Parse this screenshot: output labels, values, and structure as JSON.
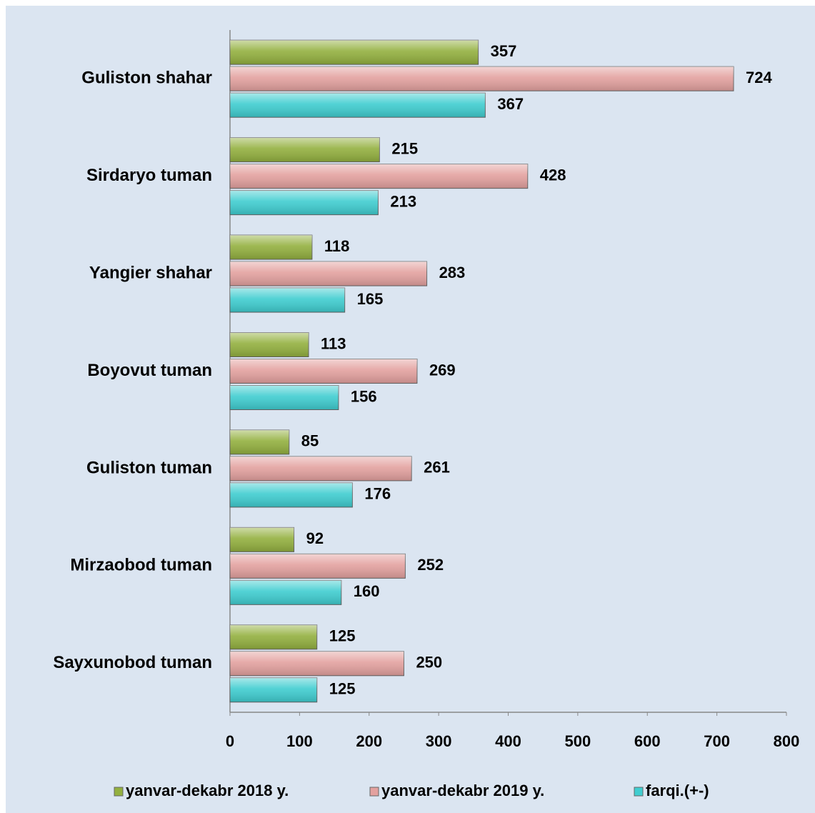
{
  "chart_data": {
    "type": "bar",
    "orientation": "horizontal",
    "categories": [
      "Guliston shahar",
      "Sirdaryo tuman",
      "Yangier shahar",
      "Boyovut tuman",
      "Guliston tuman",
      "Mirzaobod tuman",
      "Sayxunobod tuman"
    ],
    "series": [
      {
        "name": "yanvar-dekabr 2018 y.",
        "color": "#93b03f",
        "values": [
          357,
          215,
          118,
          113,
          85,
          92,
          125
        ]
      },
      {
        "name": "yanvar-dekabr 2019 y.",
        "color": "#e3a19f",
        "values": [
          724,
          428,
          283,
          269,
          261,
          252,
          250
        ]
      },
      {
        "name": "farqi.(+-)",
        "color": "#3fcdd0",
        "values": [
          367,
          213,
          165,
          156,
          176,
          160,
          125
        ]
      }
    ],
    "xlim": [
      0,
      800
    ],
    "xticks": [
      0,
      100,
      200,
      300,
      400,
      500,
      600,
      700,
      800
    ],
    "legend": "bottom"
  }
}
